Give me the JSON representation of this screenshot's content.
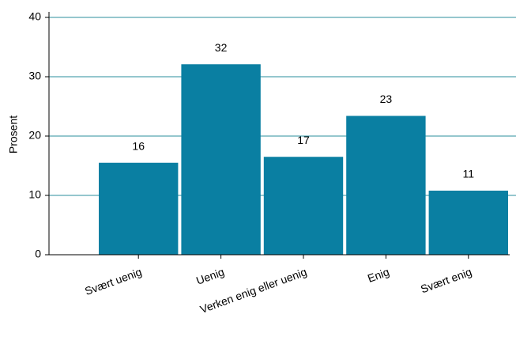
{
  "chart_data": {
    "type": "bar",
    "y_label": "Prosent",
    "categories": [
      "Svært uenig",
      "Uenig",
      "Verken enig eller uenig",
      "Enig",
      "Svært enig"
    ],
    "values": [
      15.5,
      32.1,
      16.5,
      23.4,
      10.8
    ],
    "value_labels": [
      "16",
      "32",
      "17",
      "23",
      "11"
    ],
    "color": "#0a7fa2",
    "grid_color": "#2b8f9e",
    "ylim": [
      0,
      40
    ],
    "yticks": [
      0,
      10,
      20,
      30,
      40
    ],
    "grid": true
  }
}
